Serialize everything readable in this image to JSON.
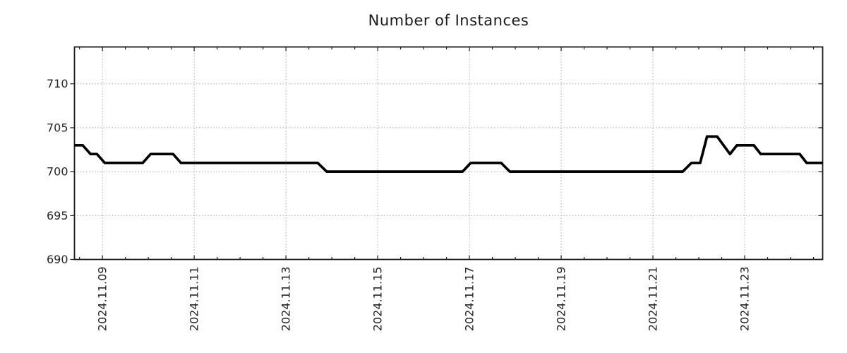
{
  "page": {
    "background": "#ffffff"
  },
  "chart_data": {
    "type": "line",
    "title": "Number of Instances",
    "grid": {
      "show": true,
      "style": "dotted",
      "color": "#a8a8a8"
    },
    "axis_color": "#1a1a1a",
    "label_color": "#262626",
    "x_axis": {
      "unit": "days_since_2024-11-09",
      "lim": [
        -0.61,
        15.7
      ],
      "minor_tick_interval": 0.5,
      "major_ticks": [
        {
          "offset": 0,
          "label": "2024.11.09"
        },
        {
          "offset": 2,
          "label": "2024.11.11"
        },
        {
          "offset": 4,
          "label": "2024.11.13"
        },
        {
          "offset": 6,
          "label": "2024.11.15"
        },
        {
          "offset": 8,
          "label": "2024.11.17"
        },
        {
          "offset": 10,
          "label": "2024.11.19"
        },
        {
          "offset": 12,
          "label": "2024.11.21"
        },
        {
          "offset": 14,
          "label": "2024.11.23"
        }
      ]
    },
    "y_axis": {
      "lim": [
        690,
        714.2
      ],
      "ticks": [
        690,
        695,
        700,
        705,
        710
      ]
    },
    "series": [
      {
        "name": "instances",
        "color": "#000000",
        "line_width": 3.7,
        "points": [
          [
            -0.61,
            703
          ],
          [
            -0.43,
            703
          ],
          [
            -0.26,
            702
          ],
          [
            -0.12,
            702
          ],
          [
            0.05,
            701
          ],
          [
            0.88,
            701
          ],
          [
            1.05,
            702
          ],
          [
            1.54,
            702
          ],
          [
            1.71,
            701
          ],
          [
            4.69,
            701
          ],
          [
            4.89,
            700
          ],
          [
            7.85,
            700
          ],
          [
            8.03,
            701
          ],
          [
            8.69,
            701
          ],
          [
            8.88,
            700
          ],
          [
            12.65,
            700
          ],
          [
            12.84,
            701
          ],
          [
            13.03,
            701
          ],
          [
            13.18,
            704
          ],
          [
            13.4,
            704
          ],
          [
            13.68,
            702
          ],
          [
            13.83,
            703
          ],
          [
            14.2,
            703
          ],
          [
            14.35,
            702
          ],
          [
            15.2,
            702
          ],
          [
            15.35,
            701
          ],
          [
            15.7,
            701
          ]
        ]
      }
    ]
  }
}
